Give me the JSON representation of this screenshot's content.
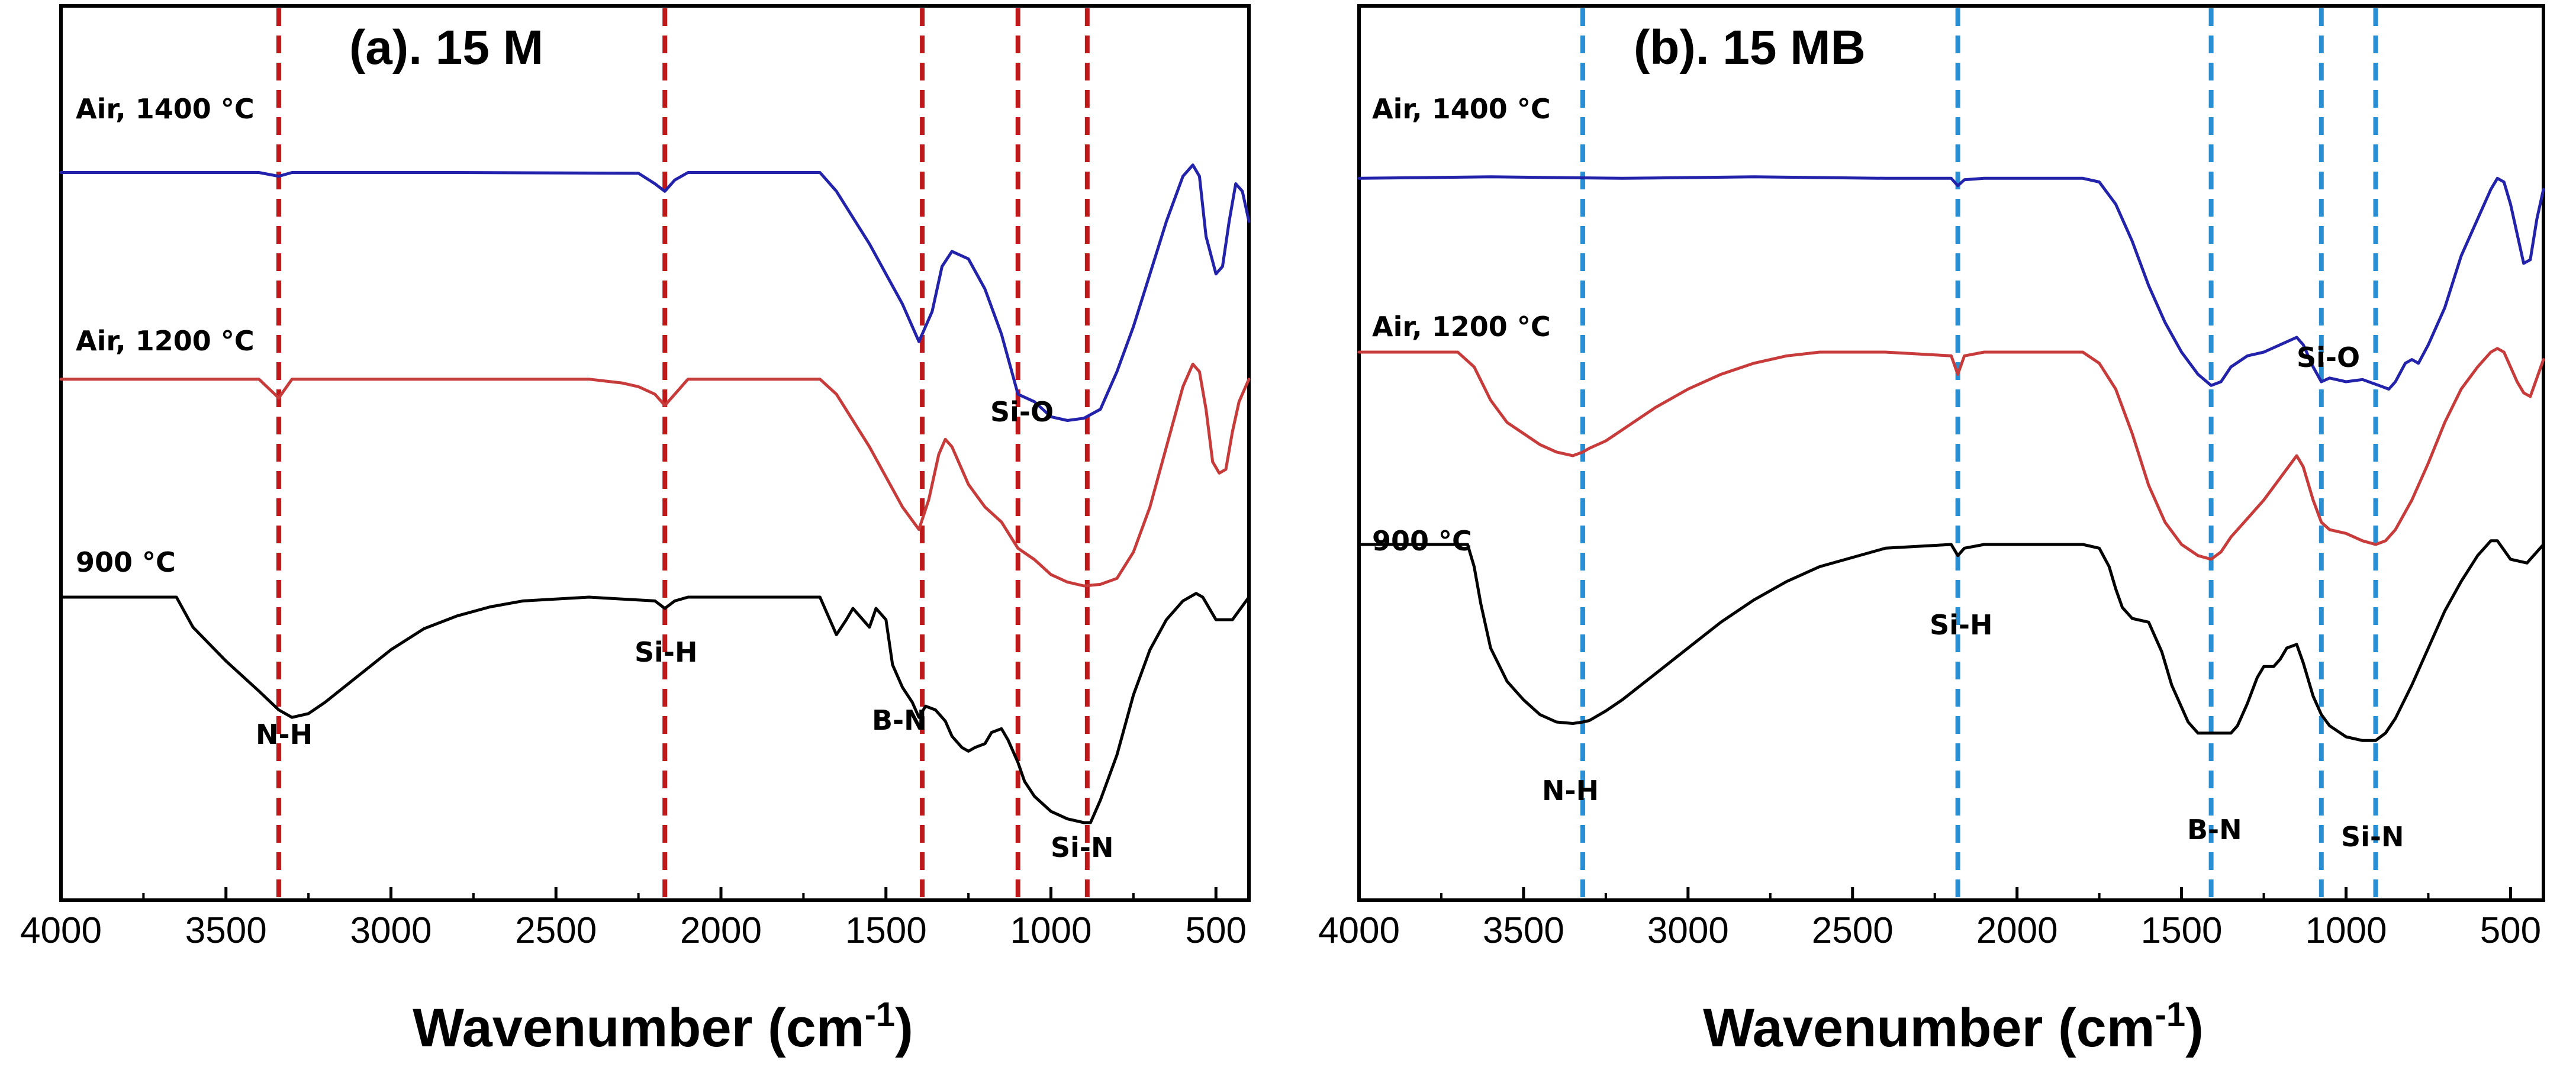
{
  "chart_data": [
    {
      "type": "line",
      "title": "(a). 15 M",
      "xlabel": "Wavenumber (cm",
      "xlabel_sup": "-1",
      "xlabel_close": ")",
      "xlim": [
        4000,
        400
      ],
      "ylim": [
        0,
        100
      ],
      "xticks": [
        4000,
        3500,
        3000,
        2500,
        2000,
        1500,
        1000,
        500
      ],
      "yaxis": "stacked transmittance (no tick labels)",
      "markers": {
        "color": "#c0191c",
        "positions": [
          3340,
          2170,
          1390,
          1100,
          890
        ]
      },
      "series": [
        {
          "name": "Air, 1400 °C",
          "color": "#2222aa",
          "x": [
            4000,
            3400,
            3340,
            3300,
            2800,
            2250,
            2200,
            2170,
            2140,
            2100,
            1700,
            1650,
            1550,
            1450,
            1400,
            1360,
            1330,
            1300,
            1250,
            1200,
            1150,
            1100,
            1050,
            1000,
            950,
            900,
            850,
            800,
            750,
            700,
            650,
            600,
            570,
            550,
            530,
            500,
            480,
            460,
            440,
            420,
            400
          ],
          "y": [
            86.5,
            86.5,
            86,
            86.5,
            86.5,
            86.4,
            85,
            84,
            85.5,
            86.5,
            86.5,
            84,
            77,
            69,
            64,
            68,
            74,
            76,
            75,
            71,
            65,
            57,
            56,
            54,
            53.5,
            53.8,
            55,
            60,
            66,
            73,
            80,
            86,
            87.5,
            86,
            78,
            73,
            74,
            80,
            85,
            84,
            80
          ]
        },
        {
          "name": "Air, 1200 °C",
          "color": "#c83b3b",
          "x": [
            4000,
            3400,
            3340,
            3300,
            2800,
            2400,
            2300,
            2250,
            2200,
            2170,
            2140,
            2100,
            1700,
            1650,
            1550,
            1450,
            1400,
            1370,
            1340,
            1320,
            1300,
            1250,
            1200,
            1150,
            1100,
            1050,
            1000,
            950,
            900,
            850,
            800,
            750,
            700,
            650,
            600,
            570,
            550,
            530,
            510,
            490,
            470,
            450,
            430,
            410,
            400
          ],
          "y": [
            59,
            59,
            56.5,
            59,
            59,
            59,
            58.5,
            58,
            57,
            55.5,
            57,
            59,
            59,
            57,
            50,
            42,
            39,
            43,
            49,
            51,
            50,
            45,
            42,
            40,
            36.5,
            35,
            33,
            32,
            31.5,
            31.7,
            32.5,
            36,
            42,
            50,
            58,
            61,
            60,
            55,
            48,
            46.5,
            47,
            52,
            56,
            58,
            59
          ]
        },
        {
          "name": "900 °C",
          "color": "#000000",
          "x": [
            4000,
            3700,
            3650,
            3600,
            3500,
            3400,
            3340,
            3300,
            3250,
            3200,
            3100,
            3000,
            2900,
            2800,
            2700,
            2600,
            2400,
            2200,
            2170,
            2140,
            2100,
            1700,
            1680,
            1650,
            1620,
            1600,
            1580,
            1550,
            1530,
            1500,
            1480,
            1450,
            1420,
            1400,
            1380,
            1350,
            1320,
            1300,
            1270,
            1250,
            1230,
            1200,
            1180,
            1150,
            1130,
            1100,
            1080,
            1050,
            1000,
            950,
            900,
            880,
            850,
            800,
            750,
            700,
            650,
            600,
            560,
            540,
            500,
            450,
            400
          ],
          "y": [
            30,
            30,
            30,
            26,
            21.5,
            17.5,
            15,
            14,
            14.5,
            16,
            19.5,
            23,
            25.8,
            27.5,
            28.7,
            29.5,
            30,
            29.5,
            28.5,
            29.5,
            30,
            30,
            28,
            25,
            27,
            28.5,
            27.5,
            26,
            28.5,
            27,
            21,
            18,
            16,
            14,
            15.5,
            15,
            13.5,
            11.5,
            10,
            9.5,
            10,
            10.5,
            12,
            12.5,
            11,
            8,
            5.5,
            3.5,
            1.5,
            0.5,
            0,
            0,
            3,
            9,
            17,
            23,
            27,
            29.5,
            30.5,
            30,
            27,
            27,
            30
          ]
        }
      ],
      "annotations": [
        "N-H",
        "Si-H",
        "B-N",
        "Si-O",
        "Si-N"
      ]
    },
    {
      "type": "line",
      "title": "(b). 15 MB",
      "xlabel": "Wavenumber (cm",
      "xlabel_sup": "-1",
      "xlabel_close": ")",
      "xlim": [
        4000,
        400
      ],
      "ylim": [
        0,
        100
      ],
      "xticks": [
        4000,
        3500,
        3000,
        2500,
        2000,
        1500,
        1000,
        500
      ],
      "yaxis": "stacked transmittance (no tick labels)",
      "markers": {
        "color": "#2a8fd2",
        "positions": [
          3320,
          2180,
          1410,
          1075,
          910
        ]
      },
      "series": [
        {
          "name": "Air, 1400 °C",
          "color": "#2222aa",
          "x": [
            4000,
            3600,
            3200,
            2800,
            2400,
            2200,
            2180,
            2160,
            2100,
            1800,
            1750,
            1700,
            1650,
            1600,
            1550,
            1500,
            1450,
            1410,
            1380,
            1350,
            1300,
            1250,
            1200,
            1150,
            1130,
            1100,
            1075,
            1050,
            1000,
            950,
            900,
            870,
            850,
            820,
            800,
            780,
            750,
            700,
            650,
            600,
            560,
            540,
            520,
            500,
            480,
            460,
            440,
            420,
            400
          ],
          "y": [
            85.5,
            85.7,
            85.5,
            85.7,
            85.5,
            85.5,
            84.5,
            85.3,
            85.5,
            85.5,
            85,
            82,
            77,
            71,
            66,
            62,
            59,
            57.5,
            58,
            60,
            61.5,
            62,
            63,
            64,
            63,
            60,
            58,
            58.5,
            58,
            58.3,
            57.5,
            57,
            58,
            60.5,
            61,
            60.5,
            63,
            68,
            75,
            80,
            84,
            85.5,
            85,
            82,
            78,
            74,
            74.5,
            80,
            84
          ]
        },
        {
          "name": "Air, 1200 °C",
          "color": "#c83b3b",
          "x": [
            4000,
            3700,
            3650,
            3600,
            3550,
            3500,
            3450,
            3400,
            3350,
            3320,
            3300,
            3250,
            3200,
            3100,
            3000,
            2900,
            2800,
            2700,
            2600,
            2400,
            2200,
            2180,
            2160,
            2100,
            1800,
            1750,
            1700,
            1650,
            1600,
            1550,
            1500,
            1450,
            1410,
            1380,
            1350,
            1300,
            1250,
            1200,
            1150,
            1130,
            1100,
            1075,
            1050,
            1000,
            950,
            910,
            880,
            850,
            800,
            750,
            700,
            650,
            600,
            560,
            540,
            520,
            500,
            480,
            460,
            440,
            420,
            400
          ],
          "y": [
            62,
            62,
            60,
            55.5,
            52.5,
            51,
            49.5,
            48.5,
            48,
            48.5,
            49,
            50,
            51.5,
            54.5,
            57,
            59,
            60.5,
            61.5,
            62,
            62,
            61.5,
            59,
            61.5,
            62,
            62,
            60.5,
            57,
            51,
            44,
            39,
            36,
            34.5,
            34,
            35,
            37,
            39.5,
            42,
            45,
            48,
            46.5,
            42,
            39,
            38,
            37.5,
            36.5,
            36,
            36.5,
            38,
            42,
            47,
            52.5,
            57,
            60,
            62,
            62.5,
            62,
            60,
            58,
            56.5,
            56,
            58.5,
            61
          ]
        },
        {
          "name": "900 °C",
          "color": "#000000",
          "x": [
            4000,
            3700,
            3670,
            3650,
            3630,
            3600,
            3550,
            3500,
            3450,
            3400,
            3350,
            3320,
            3300,
            3250,
            3200,
            3100,
            3000,
            2900,
            2800,
            2700,
            2600,
            2400,
            2200,
            2180,
            2160,
            2100,
            1800,
            1780,
            1750,
            1720,
            1700,
            1680,
            1650,
            1600,
            1560,
            1550,
            1530,
            1500,
            1480,
            1450,
            1430,
            1410,
            1380,
            1350,
            1330,
            1300,
            1270,
            1250,
            1220,
            1200,
            1180,
            1150,
            1130,
            1100,
            1075,
            1050,
            1000,
            950,
            910,
            880,
            850,
            800,
            750,
            700,
            650,
            600,
            560,
            540,
            500,
            450,
            400
          ],
          "y": [
            36,
            36,
            36,
            33,
            28,
            22,
            17.5,
            15,
            13,
            12,
            11.8,
            12,
            12.2,
            13.5,
            15,
            18.5,
            22,
            25.5,
            28.5,
            31,
            33,
            35.5,
            36,
            34.5,
            35.5,
            36,
            36,
            35.8,
            35.5,
            33,
            30,
            27.5,
            26,
            25.5,
            21.5,
            20,
            17,
            14,
            12,
            10.5,
            10.5,
            10.5,
            10.5,
            10.5,
            11.5,
            14.5,
            18,
            19.5,
            19.5,
            20.5,
            22,
            22.5,
            20,
            15.5,
            13,
            11.5,
            10,
            9.5,
            9.5,
            10.5,
            12.5,
            17,
            22,
            27,
            31,
            34.5,
            36.5,
            36.5,
            34,
            33.5,
            36
          ]
        }
      ],
      "annotations": [
        "N-H",
        "Si-H",
        "B-N",
        "Si-O",
        "Si-N"
      ]
    }
  ]
}
